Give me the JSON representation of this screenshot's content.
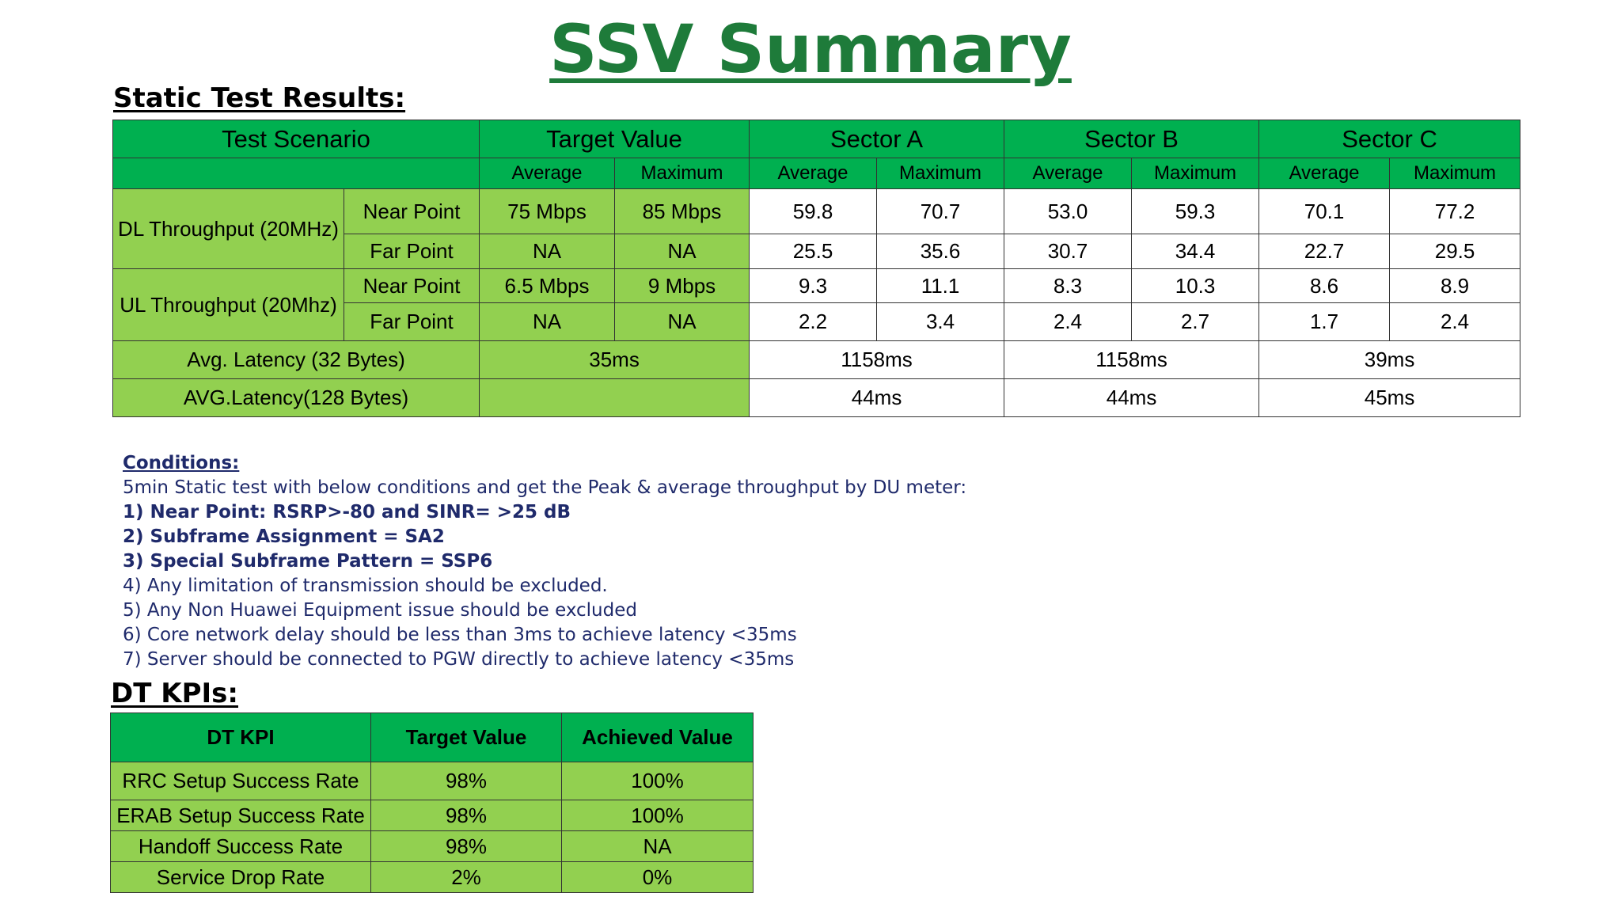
{
  "title": "SSV Summary",
  "static": {
    "heading": "Static Test Results:",
    "headers": {
      "test_scenario": "Test Scenario",
      "target_value": "Target Value",
      "sector_a": "Sector A",
      "sector_b": "Sector B",
      "sector_c": "Sector C"
    },
    "subheaders": {
      "average": "Average",
      "maximum": "Maximum"
    },
    "dl": {
      "label": "DL Throughput (20MHz)",
      "near": {
        "label": "Near Point",
        "target_avg": "75 Mbps",
        "target_max": "85 Mbps",
        "values": [
          "59.8",
          "70.7",
          "53.0",
          "59.3",
          "70.1",
          "77.2"
        ]
      },
      "far": {
        "label": "Far Point",
        "target_avg": "NA",
        "target_max": "NA",
        "values": [
          "25.5",
          "35.6",
          "30.7",
          "34.4",
          "22.7",
          "29.5"
        ]
      }
    },
    "ul": {
      "label": "UL Throughput (20Mhz)",
      "near": {
        "label": "Near Point",
        "target_avg": "6.5 Mbps",
        "target_max": "9 Mbps",
        "values": [
          "9.3",
          "11.1",
          "8.3",
          "10.3",
          "8.6",
          "8.9"
        ]
      },
      "far": {
        "label": "Far Point",
        "target_avg": "NA",
        "target_max": "NA",
        "values": [
          "2.2",
          "3.4",
          "2.4",
          "2.7",
          "1.7",
          "2.4"
        ]
      }
    },
    "latency32": {
      "label": "Avg. Latency (32 Bytes)",
      "target": "35ms",
      "values": [
        "1158ms",
        "1158ms",
        "39ms"
      ]
    },
    "latency128": {
      "label": "AVG.Latency(128 Bytes)",
      "target": "",
      "values": [
        "44ms",
        "44ms",
        "45ms"
      ]
    }
  },
  "conditions": {
    "heading": "Conditions:",
    "intro": "5min Static test with below conditions and get the Peak & average throughput by DU meter:",
    "items": [
      "1) Near Point: RSRP>-80 and SINR= >25 dB",
      "2) Subframe Assignment = SA2",
      "3) Special Subframe Pattern = SSP6",
      "4) Any limitation of transmission should be excluded.",
      "5) Any Non Huawei Equipment issue should be excluded",
      "6) Core network delay should be less than 3ms to achieve latency <35ms",
      "7) Server should be connected to PGW directly to achieve latency <35ms"
    ]
  },
  "dt": {
    "heading": "DT KPIs:",
    "headers": {
      "kpi": "DT KPI",
      "target": "Target Value",
      "achieved": "Achieved Value"
    },
    "rows": [
      {
        "kpi": "RRC Setup Success Rate",
        "target": "98%",
        "achieved": "100%"
      },
      {
        "kpi": "ERAB Setup Success Rate",
        "target": "98%",
        "achieved": "100%"
      },
      {
        "kpi": "Handoff Success Rate",
        "target": "98%",
        "achieved": "NA"
      },
      {
        "kpi": "Service Drop Rate",
        "target": "2%",
        "achieved": "0%"
      }
    ]
  },
  "colors": {
    "title_green": "#1e7b3a",
    "header_green": "#00b050",
    "light_green": "#92d050",
    "conditions_text": "#1f2a6b"
  }
}
